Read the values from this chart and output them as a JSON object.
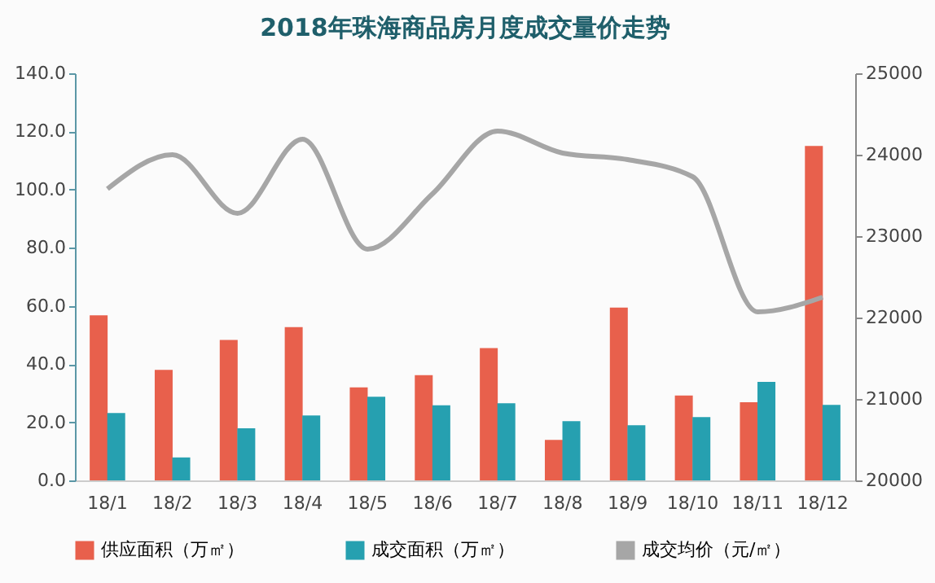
{
  "chart_data": {
    "type": "bar",
    "title": "2018年珠海商品房月度成交量价走势",
    "categories": [
      "18/1",
      "18/2",
      "18/3",
      "18/4",
      "18/5",
      "18/6",
      "18/7",
      "18/8",
      "18/9",
      "18/10",
      "18/11",
      "18/12"
    ],
    "series": [
      {
        "name": "供应面积（万㎡）",
        "color": "#e8604c",
        "values": [
          56.8,
          38.0,
          48.3,
          52.7,
          32.0,
          36.2,
          45.5,
          13.9,
          59.4,
          29.2,
          26.9,
          115.0
        ]
      },
      {
        "name": "成交面积（万㎡）",
        "color": "#26a0b0",
        "values": [
          23.2,
          7.9,
          17.9,
          22.3,
          28.8,
          25.8,
          26.5,
          20.4,
          19.0,
          21.8,
          33.9,
          26.0
        ]
      },
      {
        "name": "成交均价（元/㎡）",
        "color": "#a6a6a6",
        "type": "line",
        "axis": "y2",
        "values": [
          23580,
          24000,
          23280,
          24190,
          22840,
          23520,
          24290,
          24020,
          23940,
          23730,
          22070,
          22250
        ]
      }
    ],
    "ylim": [
      0,
      140
    ],
    "yticks": [
      {
        "value": 0,
        "label": "0.0"
      },
      {
        "value": 20,
        "label": "20.0"
      },
      {
        "value": 40,
        "label": "40.0"
      },
      {
        "value": 60,
        "label": "60.0"
      },
      {
        "value": 80,
        "label": "80.0"
      },
      {
        "value": 100,
        "label": "100.0"
      },
      {
        "value": 120,
        "label": "120.0"
      },
      {
        "value": 140,
        "label": "140.0"
      }
    ],
    "y2lim": [
      20000,
      25000
    ],
    "y2ticks": [
      20000,
      21000,
      22000,
      23000,
      24000,
      25000
    ],
    "grid": false,
    "legend": "bottom"
  }
}
